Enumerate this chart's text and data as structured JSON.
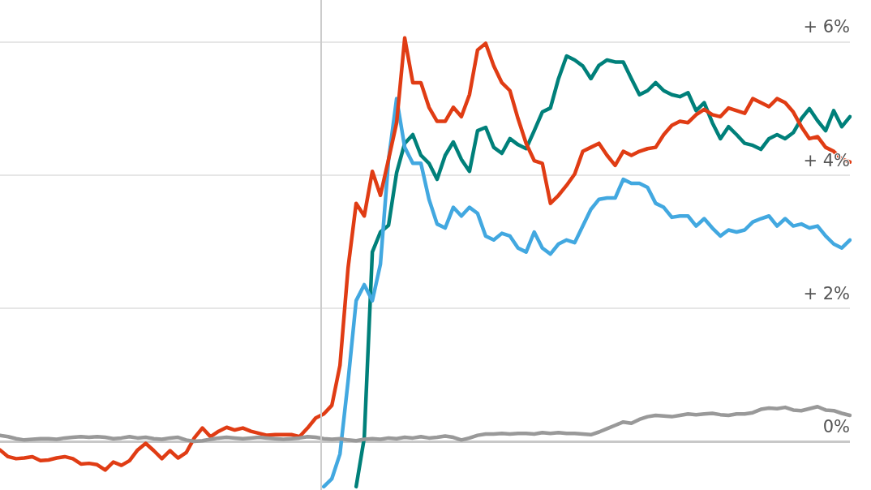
{
  "chart_data": {
    "type": "line",
    "categories": [
      null,
      null,
      null,
      null,
      null,
      null,
      null,
      null,
      null,
      null,
      null,
      null,
      null,
      null,
      null,
      null,
      null,
      null,
      null,
      null,
      null,
      null,
      null,
      null,
      null,
      null,
      null,
      null,
      null,
      null,
      null,
      null,
      null,
      null,
      null,
      null,
      null,
      null,
      null,
      null,
      null,
      null,
      null,
      null,
      null,
      null,
      null,
      null,
      null,
      null,
      null,
      null,
      null,
      null,
      null,
      null,
      null,
      null,
      null,
      null,
      null,
      null,
      null,
      null,
      null,
      null,
      null,
      null,
      null,
      null,
      null,
      null,
      null,
      null,
      null,
      null,
      null,
      null,
      null,
      null,
      null,
      null,
      null,
      null,
      null,
      null,
      null,
      null,
      null,
      null,
      null,
      null,
      null,
      null,
      null,
      null,
      null,
      null,
      null,
      null,
      null,
      null,
      null,
      null,
      null,
      null
    ],
    "series": [
      {
        "color": "#999999",
        "values": [
          0.1,
          0.08,
          0.05,
          0.03,
          0.04,
          0.05,
          0.05,
          0.04,
          0.06,
          0.07,
          0.08,
          0.07,
          0.08,
          0.07,
          0.05,
          0.06,
          0.08,
          0.06,
          0.07,
          0.05,
          0.04,
          0.06,
          0.07,
          0.03,
          0.01,
          0.02,
          0.04,
          0.06,
          0.07,
          0.06,
          0.05,
          0.06,
          0.07,
          0.06,
          0.05,
          0.04,
          0.05,
          0.06,
          0.08,
          0.07,
          0.05,
          0.04,
          0.05,
          0.03,
          0.02,
          0.04,
          0.05,
          0.04,
          0.06,
          0.05,
          0.07,
          0.06,
          0.08,
          0.06,
          0.07,
          0.09,
          0.07,
          0.03,
          0.06,
          0.1,
          0.12,
          0.12,
          0.13,
          0.12,
          0.13,
          0.13,
          0.12,
          0.14,
          0.13,
          0.14,
          0.13,
          0.13,
          0.12,
          0.11,
          0.15,
          0.2,
          0.25,
          0.3,
          0.28,
          0.34,
          0.38,
          0.4,
          0.39,
          0.38,
          0.4,
          0.42,
          0.41,
          0.42,
          0.43,
          0.41,
          0.4,
          0.42,
          0.42,
          0.44,
          0.49,
          0.51,
          0.5,
          0.52,
          0.48,
          0.47,
          0.5,
          0.53,
          0.48,
          0.47,
          0.43,
          0.4
        ]
      },
      {
        "color": "#e03c14",
        "values": [
          -0.12,
          -0.22,
          -0.25,
          -0.24,
          -0.22,
          -0.28,
          -0.27,
          -0.24,
          -0.22,
          -0.25,
          -0.33,
          -0.32,
          -0.34,
          -0.42,
          -0.3,
          -0.35,
          -0.28,
          -0.12,
          -0.02,
          -0.13,
          -0.25,
          -0.13,
          -0.24,
          -0.16,
          0.06,
          0.21,
          0.08,
          0.16,
          0.22,
          0.18,
          0.21,
          0.16,
          0.13,
          0.1,
          0.11,
          0.11,
          0.11,
          0.08,
          0.21,
          0.36,
          0.42,
          0.55,
          1.15,
          2.61,
          3.58,
          3.39,
          4.06,
          3.7,
          4.24,
          4.79,
          6.06,
          5.39,
          5.39,
          5.02,
          4.81,
          4.81,
          5.02,
          4.88,
          5.21,
          5.88,
          5.98,
          5.64,
          5.39,
          5.27,
          4.85,
          4.48,
          4.22,
          4.18,
          3.58,
          3.7,
          3.85,
          4.02,
          4.36,
          4.42,
          4.48,
          4.3,
          4.15,
          4.36,
          4.3,
          4.36,
          4.4,
          4.42,
          4.61,
          4.75,
          4.81,
          4.79,
          4.91,
          4.99,
          4.91,
          4.88,
          5.01,
          4.97,
          4.93,
          5.15,
          5.09,
          5.03,
          5.15,
          5.09,
          4.95,
          4.73,
          4.55,
          4.58,
          4.42,
          4.36,
          4.24,
          4.2
        ]
      },
      {
        "color": "#42a8e0",
        "values": [
          null,
          null,
          null,
          null,
          null,
          null,
          null,
          null,
          null,
          null,
          null,
          null,
          null,
          null,
          null,
          null,
          null,
          null,
          null,
          null,
          null,
          null,
          null,
          null,
          null,
          null,
          null,
          null,
          null,
          null,
          null,
          null,
          null,
          null,
          null,
          null,
          null,
          null,
          null,
          null,
          -0.67,
          -0.55,
          -0.18,
          0.91,
          2.12,
          2.36,
          2.12,
          2.67,
          4.23,
          5.15,
          4.42,
          4.18,
          4.18,
          3.64,
          3.27,
          3.21,
          3.52,
          3.39,
          3.52,
          3.43,
          3.09,
          3.03,
          3.13,
          3.09,
          2.91,
          2.85,
          3.15,
          2.91,
          2.82,
          2.97,
          3.03,
          2.99,
          3.24,
          3.49,
          3.64,
          3.66,
          3.66,
          3.94,
          3.88,
          3.88,
          3.82,
          3.58,
          3.52,
          3.37,
          3.39,
          3.39,
          3.24,
          3.35,
          3.21,
          3.09,
          3.18,
          3.15,
          3.18,
          3.3,
          3.35,
          3.39,
          3.24,
          3.35,
          3.24,
          3.27,
          3.21,
          3.24,
          3.09,
          2.97,
          2.91,
          3.03
        ]
      },
      {
        "color": "#00807a",
        "values": [
          null,
          null,
          null,
          null,
          null,
          null,
          null,
          null,
          null,
          null,
          null,
          null,
          null,
          null,
          null,
          null,
          null,
          null,
          null,
          null,
          null,
          null,
          null,
          null,
          null,
          null,
          null,
          null,
          null,
          null,
          null,
          null,
          null,
          null,
          null,
          null,
          null,
          null,
          null,
          null,
          null,
          null,
          null,
          null,
          -0.67,
          0.06,
          2.85,
          3.15,
          3.25,
          4.04,
          4.48,
          4.61,
          4.3,
          4.18,
          3.94,
          4.3,
          4.5,
          4.24,
          4.06,
          4.67,
          4.72,
          4.42,
          4.33,
          4.55,
          4.46,
          4.4,
          4.67,
          4.95,
          5.01,
          5.45,
          5.79,
          5.73,
          5.64,
          5.45,
          5.65,
          5.73,
          5.7,
          5.7,
          5.45,
          5.21,
          5.27,
          5.39,
          5.27,
          5.21,
          5.18,
          5.24,
          4.97,
          5.09,
          4.79,
          4.55,
          4.73,
          4.61,
          4.48,
          4.45,
          4.39,
          4.55,
          4.61,
          4.55,
          4.64,
          4.85,
          5.0,
          4.82,
          4.67,
          4.97,
          4.73,
          4.88
        ]
      }
    ],
    "ylim": [
      -0.72,
      6.63
    ],
    "yticks": [
      {
        "value": 0,
        "label": "0%"
      },
      {
        "value": 2,
        "label": "+ 2%"
      },
      {
        "value": 4,
        "label": "+ 4%"
      },
      {
        "value": 6,
        "label": "+ 6%"
      }
    ],
    "grid": "y",
    "tick_labels": "y",
    "marker": "none"
  }
}
